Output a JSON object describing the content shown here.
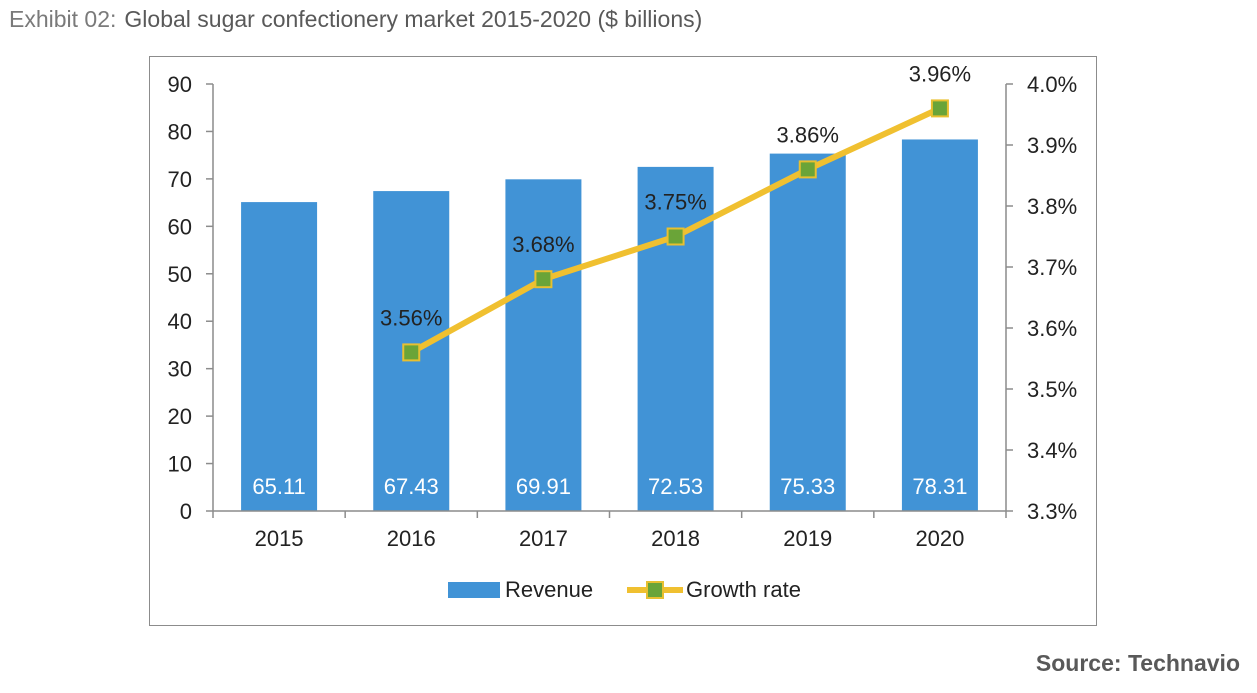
{
  "header": {
    "exhibit": "Exhibit 02:",
    "title": "Global sugar confectionery market 2015-2020 ($ billions)"
  },
  "source": "Source: Technavio",
  "colors": {
    "bar": "#4193d6",
    "line": "#f0c030",
    "marker_fill": "#6aa438",
    "marker_stroke": "#e8c030",
    "axis": "#8c8c8c"
  },
  "chart_data": {
    "type": "bar",
    "title": "Global sugar confectionery market 2015-2020 ($ billions)",
    "categories": [
      "2015",
      "2016",
      "2017",
      "2018",
      "2019",
      "2020"
    ],
    "series": [
      {
        "name": "Revenue",
        "type": "bar",
        "axis": "left",
        "values": [
          65.11,
          67.43,
          69.91,
          72.53,
          75.33,
          78.31
        ],
        "labels": [
          "65.11",
          "67.43",
          "69.91",
          "72.53",
          "75.33",
          "78.31"
        ]
      },
      {
        "name": "Growth rate",
        "type": "line",
        "axis": "right",
        "values": [
          null,
          3.56,
          3.68,
          3.75,
          3.86,
          3.96
        ],
        "labels": [
          "",
          "3.56%",
          "3.68%",
          "3.75%",
          "3.86%",
          "3.96%"
        ]
      }
    ],
    "y_left": {
      "min": 0,
      "max": 90,
      "step": 10,
      "ticks": [
        "0",
        "10",
        "20",
        "30",
        "40",
        "50",
        "60",
        "70",
        "80",
        "90"
      ]
    },
    "y_right": {
      "min": 3.3,
      "max": 4.0,
      "step": 0.1,
      "ticks": [
        "3.3%",
        "3.4%",
        "3.5%",
        "3.6%",
        "3.7%",
        "3.8%",
        "3.9%",
        "4.0%"
      ]
    },
    "legend": {
      "position": "bottom",
      "items": [
        "Revenue",
        "Growth rate"
      ]
    }
  }
}
